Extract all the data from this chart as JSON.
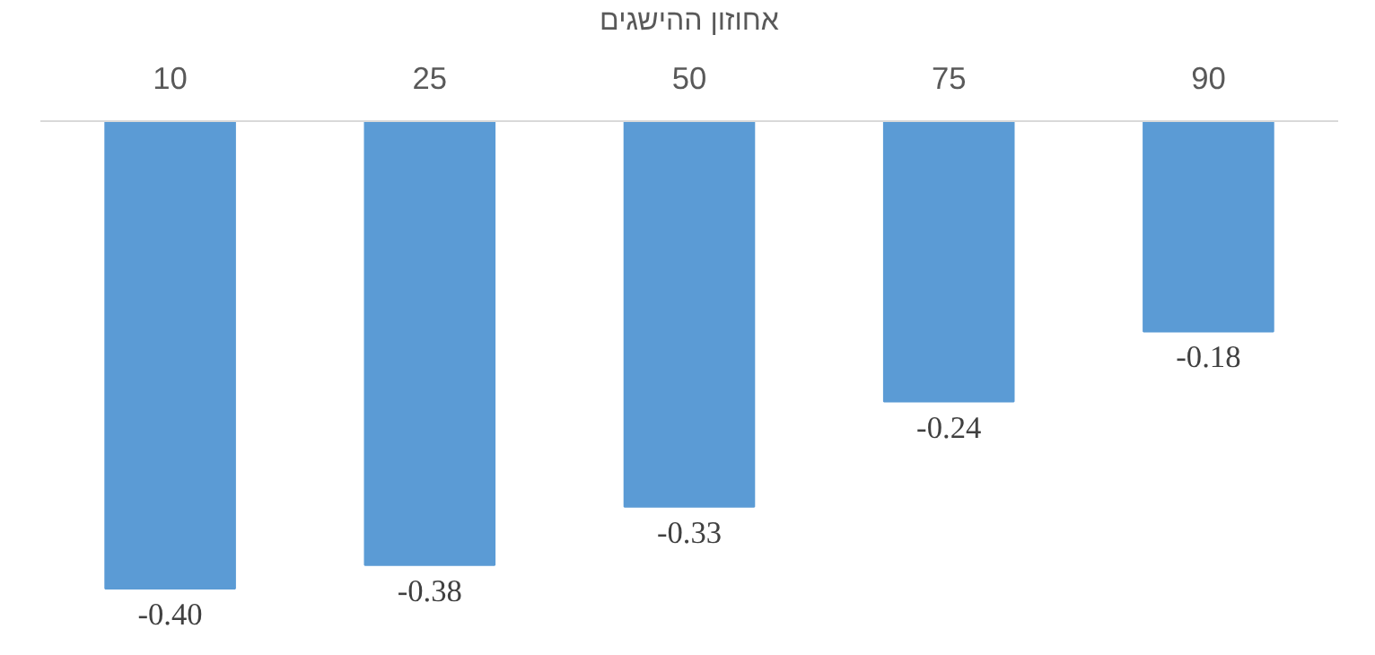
{
  "chart_data": {
    "type": "bar",
    "xlabel": "אחוזון ההישגים",
    "categories": [
      "10",
      "25",
      "50",
      "75",
      "90"
    ],
    "values": [
      -0.4,
      -0.38,
      -0.33,
      -0.24,
      -0.18
    ],
    "value_labels": [
      "-0.40",
      "-0.38",
      "-0.33",
      "-0.24",
      "-0.18"
    ],
    "color": "#5b9bd5",
    "tick_labels": "x",
    "grid": false
  }
}
